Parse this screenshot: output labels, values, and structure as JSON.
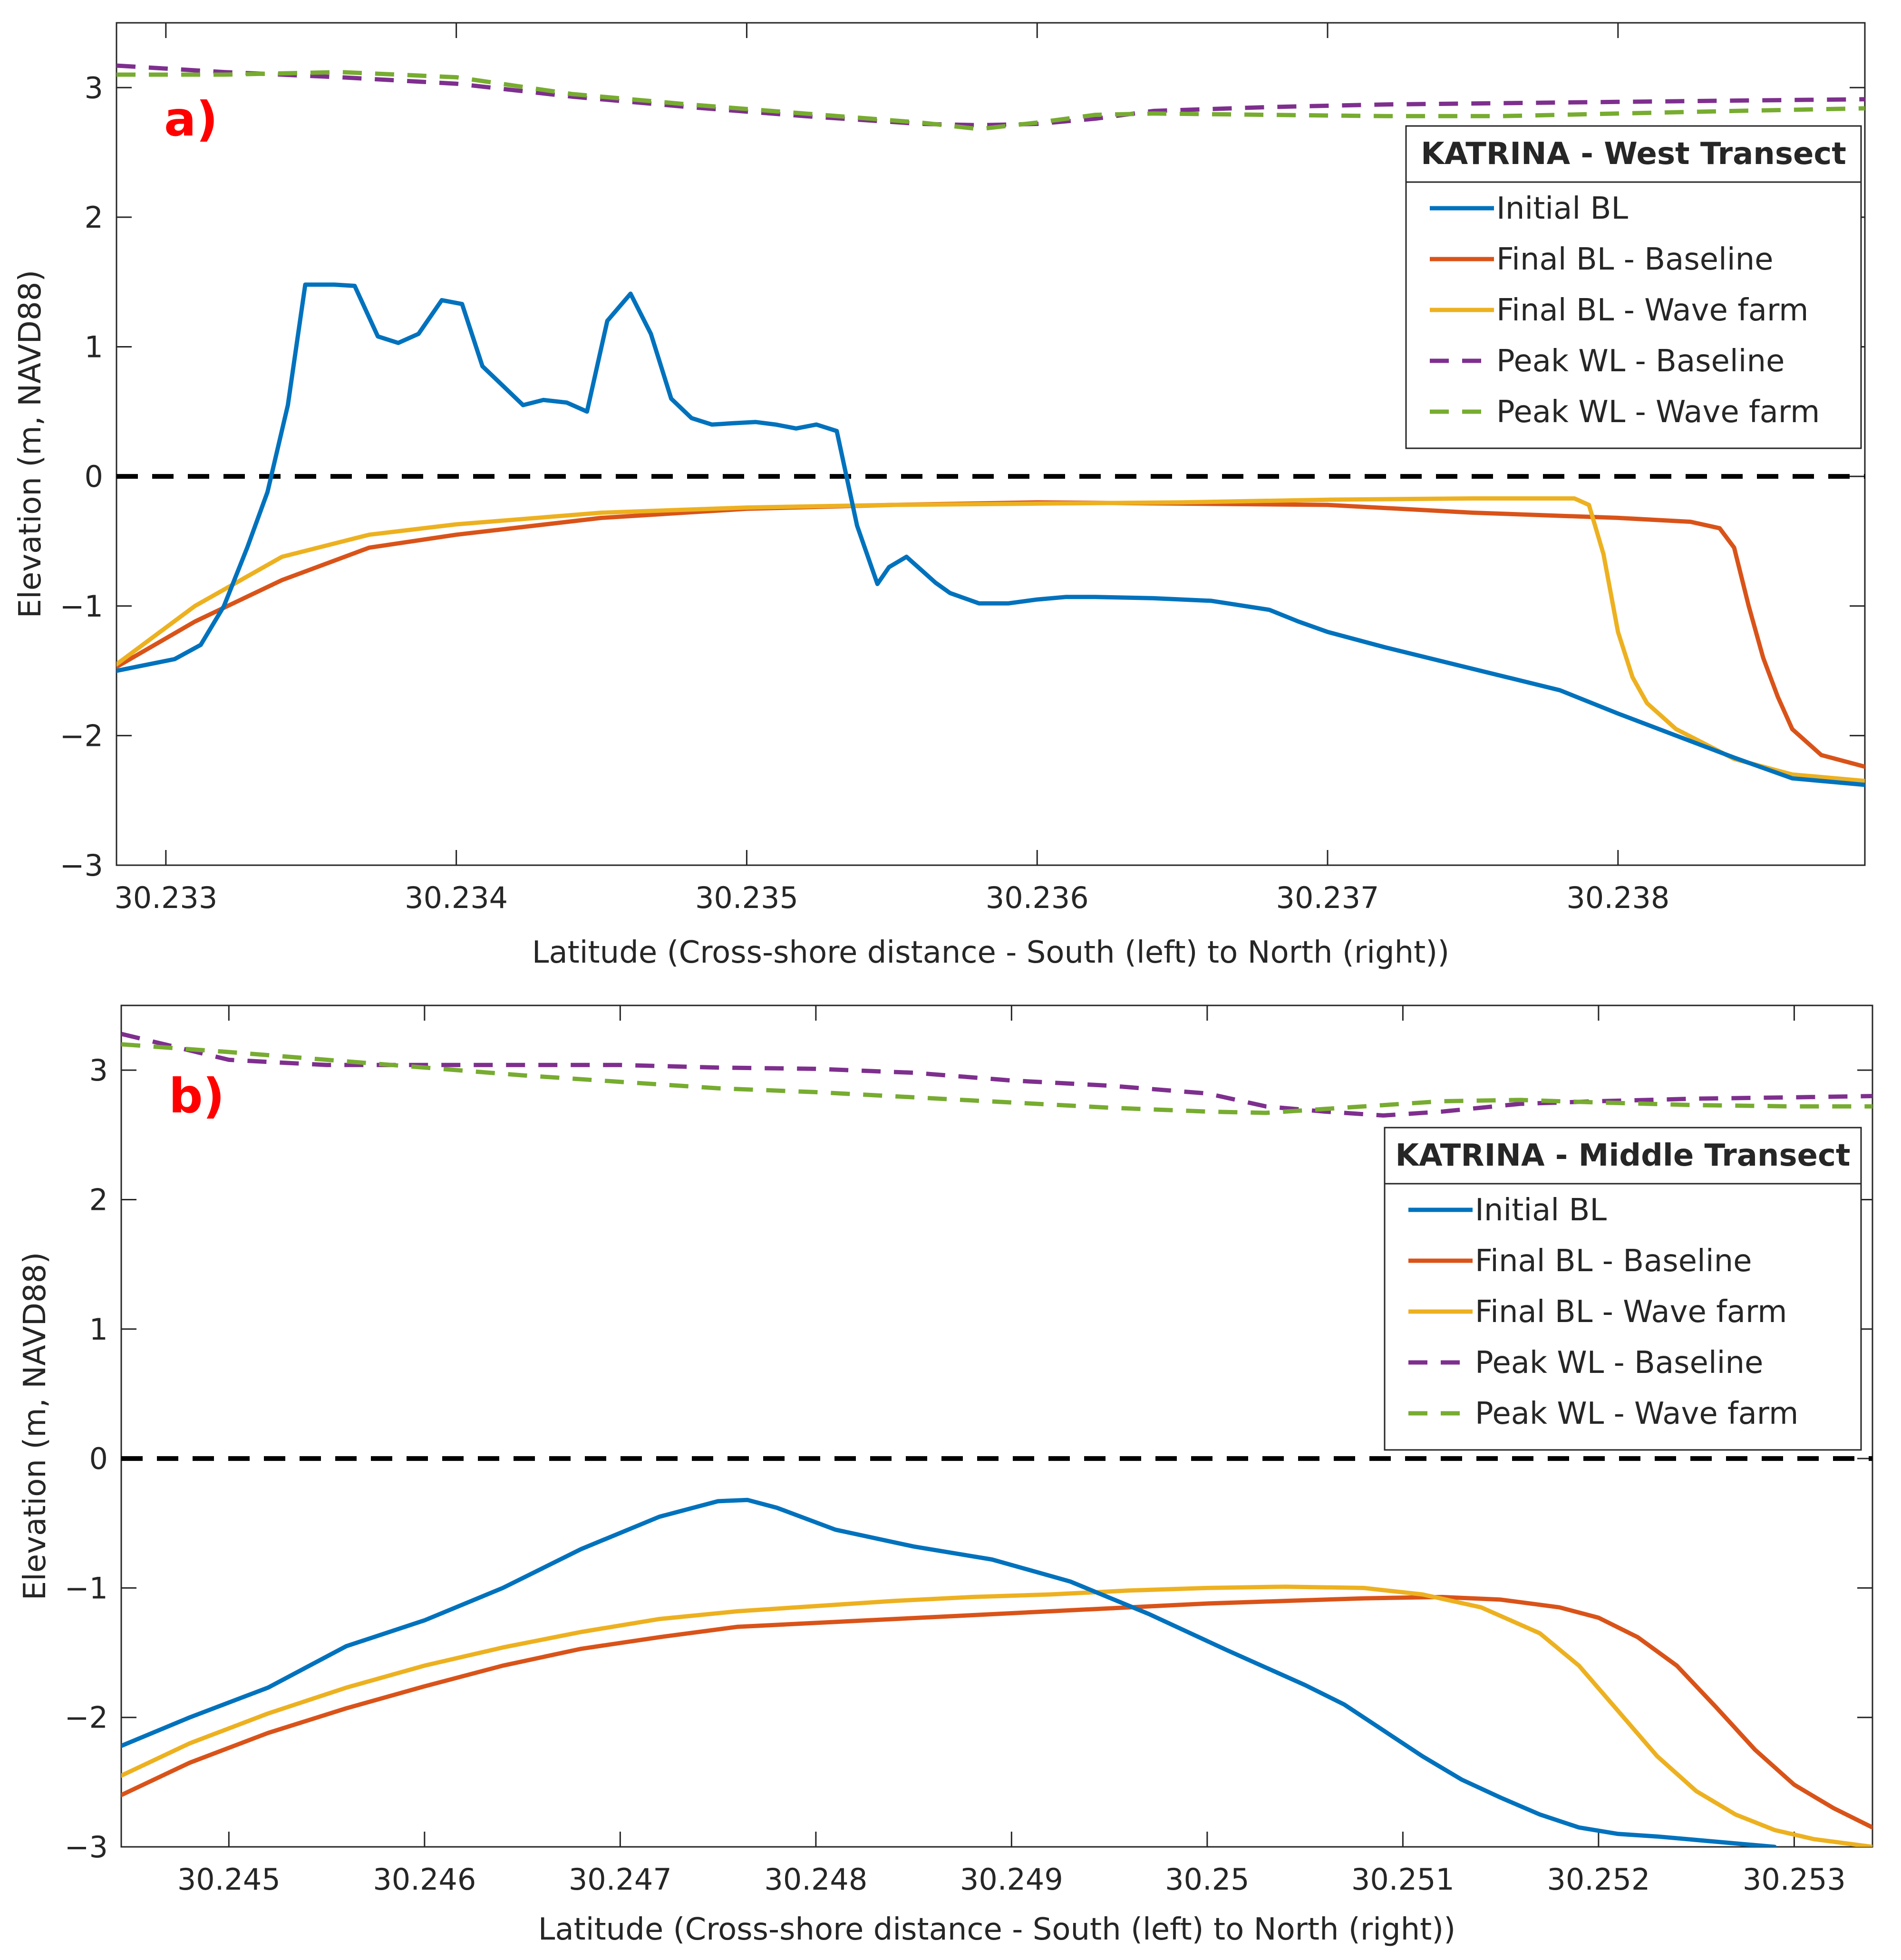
{
  "chart_data": [
    {
      "type": "line",
      "panel_label": "a)",
      "xlabel": "Latitude (Cross-shore distance - South (left) to North (right))",
      "ylabel": "Elevation (m, NAVD88)",
      "xlim": [
        30.23283,
        30.23885
      ],
      "ylim": [
        -3,
        3.5
      ],
      "xticks": [
        30.233,
        30.234,
        30.235,
        30.236,
        30.237,
        30.238
      ],
      "xtick_labels": [
        "30.233",
        "30.234",
        "30.235",
        "30.236",
        "30.237",
        "30.238"
      ],
      "yticks": [
        -3,
        -2,
        -1,
        0,
        1,
        2,
        3
      ],
      "ytick_labels": [
        "−3",
        "−2",
        "−1",
        "0",
        "1",
        "2",
        "3"
      ],
      "reference_line": {
        "y": 0,
        "style": "dashed",
        "color": "#000000"
      },
      "legend": {
        "title": "KATRINA - West Transect",
        "position": "top-right"
      },
      "series": [
        {
          "name": "Initial BL",
          "color": "#0072BD",
          "dash": "solid",
          "x": [
            30.23283,
            30.23303,
            30.23312,
            30.2332,
            30.23328,
            30.23335,
            30.23342,
            30.23348,
            30.23352,
            30.23358,
            30.23365,
            30.23373,
            30.2338,
            30.23387,
            30.23395,
            30.23402,
            30.23409,
            30.23416,
            30.23423,
            30.2343,
            30.23438,
            30.23445,
            30.23452,
            30.2346,
            30.23467,
            30.23474,
            30.23481,
            30.23488,
            30.23495,
            30.23503,
            30.2351,
            30.23517,
            30.23524,
            30.23531,
            30.23538,
            30.23545,
            30.23549,
            30.23555,
            30.2356,
            30.23565,
            30.2357,
            30.2358,
            30.2359,
            30.236,
            30.2361,
            30.2362,
            30.2364,
            30.2366,
            30.2368,
            30.2369,
            30.237,
            30.2372,
            30.2374,
            30.2376,
            30.2378,
            30.238,
            30.2382,
            30.2384,
            30.2386,
            30.23885
          ],
          "y": [
            -1.5,
            -1.41,
            -1.3,
            -1.0,
            -0.55,
            -0.12,
            0.55,
            1.48,
            1.48,
            1.48,
            1.47,
            1.08,
            1.03,
            1.1,
            1.36,
            1.33,
            0.85,
            0.7,
            0.55,
            0.59,
            0.57,
            0.5,
            1.2,
            1.41,
            1.1,
            0.6,
            0.45,
            0.4,
            0.41,
            0.42,
            0.4,
            0.37,
            0.4,
            0.35,
            -0.38,
            -0.83,
            -0.7,
            -0.62,
            -0.72,
            -0.82,
            -0.9,
            -0.98,
            -0.98,
            -0.95,
            -0.93,
            -0.93,
            -0.94,
            -0.96,
            -1.03,
            -1.12,
            -1.2,
            -1.32,
            -1.43,
            -1.54,
            -1.65,
            -1.83,
            -2.0,
            -2.17,
            -2.33,
            -2.38
          ]
        },
        {
          "name": "Final BL - Baseline",
          "color": "#D95319",
          "dash": "solid",
          "x": [
            30.23283,
            30.2331,
            30.2334,
            30.2337,
            30.234,
            30.2345,
            30.235,
            30.2355,
            30.236,
            30.2365,
            30.237,
            30.2375,
            30.238,
            30.23825,
            30.23835,
            30.2384,
            30.23845,
            30.2385,
            30.23855,
            30.2386,
            30.2387,
            30.23885
          ],
          "y": [
            -1.47,
            -1.12,
            -0.8,
            -0.55,
            -0.45,
            -0.32,
            -0.25,
            -0.22,
            -0.2,
            -0.21,
            -0.22,
            -0.28,
            -0.32,
            -0.35,
            -0.4,
            -0.55,
            -1.0,
            -1.4,
            -1.7,
            -1.95,
            -2.15,
            -2.24
          ]
        },
        {
          "name": "Final BL - Wave farm",
          "color": "#EDB120",
          "dash": "solid",
          "x": [
            30.23283,
            30.2331,
            30.2334,
            30.2337,
            30.234,
            30.2345,
            30.235,
            30.2355,
            30.236,
            30.2365,
            30.237,
            30.2375,
            30.2377,
            30.23785,
            30.2379,
            30.23795,
            30.238,
            30.23805,
            30.2381,
            30.2382,
            30.2384,
            30.2386,
            30.23885
          ],
          "y": [
            -1.45,
            -1.0,
            -0.62,
            -0.45,
            -0.37,
            -0.28,
            -0.24,
            -0.22,
            -0.21,
            -0.2,
            -0.18,
            -0.17,
            -0.17,
            -0.17,
            -0.22,
            -0.6,
            -1.2,
            -1.55,
            -1.75,
            -1.95,
            -2.18,
            -2.3,
            -2.35
          ]
        },
        {
          "name": "Peak WL - Baseline",
          "color": "#7E2F8E",
          "dash": "dashed",
          "x": [
            30.23283,
            30.2332,
            30.2336,
            30.234,
            30.2344,
            30.2348,
            30.2352,
            30.2356,
            30.2358,
            30.236,
            30.2362,
            30.2364,
            30.2368,
            30.2372,
            30.2376,
            30.238,
            30.2384,
            30.23885
          ],
          "y": [
            3.17,
            3.12,
            3.08,
            3.03,
            2.93,
            2.85,
            2.78,
            2.72,
            2.71,
            2.72,
            2.76,
            2.82,
            2.85,
            2.87,
            2.88,
            2.89,
            2.9,
            2.91
          ]
        },
        {
          "name": "Peak WL - Wave farm",
          "color": "#77AC30",
          "dash": "dashed",
          "x": [
            30.23283,
            30.2332,
            30.2336,
            30.234,
            30.2344,
            30.2348,
            30.2352,
            30.2356,
            30.2358,
            30.236,
            30.2362,
            30.2364,
            30.2368,
            30.2372,
            30.2376,
            30.238,
            30.2384,
            30.23885
          ],
          "y": [
            3.1,
            3.1,
            3.12,
            3.08,
            2.95,
            2.87,
            2.8,
            2.73,
            2.68,
            2.73,
            2.79,
            2.8,
            2.79,
            2.78,
            2.78,
            2.8,
            2.82,
            2.84
          ]
        }
      ]
    },
    {
      "type": "line",
      "panel_label": "b)",
      "xlabel": "Latitude (Cross-shore distance - South (left) to North (right))",
      "ylabel": "Elevation (m, NAVD88)",
      "xlim": [
        30.24445,
        30.2534
      ],
      "ylim": [
        -3,
        3.5
      ],
      "xticks": [
        30.245,
        30.246,
        30.247,
        30.248,
        30.249,
        30.25,
        30.251,
        30.252,
        30.253
      ],
      "xtick_labels": [
        "30.245",
        "30.246",
        "30.247",
        "30.248",
        "30.249",
        "30.25",
        "30.251",
        "30.252",
        "30.253"
      ],
      "yticks": [
        -3,
        -2,
        -1,
        0,
        1,
        2,
        3
      ],
      "ytick_labels": [
        "−3",
        "−2",
        "−1",
        "0",
        "1",
        "2",
        "3"
      ],
      "reference_line": {
        "y": 0,
        "style": "dashed",
        "color": "#000000"
      },
      "legend": {
        "title": "KATRINA - Middle Transect",
        "position": "top-right"
      },
      "series": [
        {
          "name": "Initial BL",
          "color": "#0072BD",
          "dash": "solid",
          "x": [
            30.24445,
            30.2448,
            30.2452,
            30.2456,
            30.246,
            30.2464,
            30.2468,
            30.2472,
            30.2475,
            30.24765,
            30.2478,
            30.2481,
            30.2485,
            30.2489,
            30.2493,
            30.2497,
            30.2501,
            30.2505,
            30.2507,
            30.2509,
            30.2511,
            30.2513,
            30.2515,
            30.2517,
            30.2519,
            30.2521,
            30.2523,
            30.2526,
            30.2529
          ],
          "y": [
            -2.22,
            -2.0,
            -1.77,
            -1.45,
            -1.25,
            -1.0,
            -0.7,
            -0.45,
            -0.33,
            -0.32,
            -0.38,
            -0.55,
            -0.68,
            -0.78,
            -0.95,
            -1.2,
            -1.48,
            -1.75,
            -1.9,
            -2.1,
            -2.3,
            -2.48,
            -2.62,
            -2.75,
            -2.85,
            -2.9,
            -2.92,
            -2.96,
            -3.0
          ]
        },
        {
          "name": "Final BL - Baseline",
          "color": "#D95319",
          "dash": "solid",
          "x": [
            30.24445,
            30.2448,
            30.2452,
            30.2456,
            30.246,
            30.2464,
            30.2468,
            30.2472,
            30.2476,
            30.248,
            30.2484,
            30.2488,
            30.2492,
            30.2496,
            30.25,
            30.2504,
            30.2508,
            30.2512,
            30.2515,
            30.2518,
            30.252,
            30.2522,
            30.2524,
            30.2526,
            30.2528,
            30.253,
            30.2532,
            30.2534
          ],
          "y": [
            -2.6,
            -2.35,
            -2.12,
            -1.93,
            -1.76,
            -1.6,
            -1.47,
            -1.38,
            -1.3,
            -1.27,
            -1.24,
            -1.21,
            -1.18,
            -1.15,
            -1.12,
            -1.1,
            -1.08,
            -1.07,
            -1.09,
            -1.15,
            -1.23,
            -1.38,
            -1.6,
            -1.92,
            -2.25,
            -2.52,
            -2.7,
            -2.85
          ]
        },
        {
          "name": "Final BL - Wave farm",
          "color": "#EDB120",
          "dash": "solid",
          "x": [
            30.24445,
            30.2448,
            30.2452,
            30.2456,
            30.246,
            30.2464,
            30.2468,
            30.2472,
            30.2476,
            30.248,
            30.2484,
            30.2488,
            30.2492,
            30.2496,
            30.25,
            30.2504,
            30.2508,
            30.2511,
            30.2514,
            30.2517,
            30.2519,
            30.2521,
            30.2523,
            30.2525,
            30.2527,
            30.2529,
            30.2531,
            30.2534
          ],
          "y": [
            -2.45,
            -2.2,
            -1.97,
            -1.77,
            -1.6,
            -1.46,
            -1.34,
            -1.24,
            -1.18,
            -1.14,
            -1.1,
            -1.07,
            -1.05,
            -1.02,
            -1.0,
            -0.99,
            -1.0,
            -1.05,
            -1.15,
            -1.35,
            -1.6,
            -1.95,
            -2.3,
            -2.57,
            -2.75,
            -2.87,
            -2.94,
            -3.0
          ]
        },
        {
          "name": "Peak WL - Baseline",
          "color": "#7E2F8E",
          "dash": "dashed",
          "x": [
            30.24445,
            30.245,
            30.2455,
            30.246,
            30.2465,
            30.247,
            30.2475,
            30.248,
            30.2485,
            30.249,
            30.2495,
            30.25,
            30.2503,
            30.2506,
            30.2509,
            30.2512,
            30.2516,
            30.252,
            30.2525,
            30.253,
            30.2534
          ],
          "y": [
            3.28,
            3.08,
            3.04,
            3.04,
            3.04,
            3.04,
            3.02,
            3.01,
            2.98,
            2.92,
            2.88,
            2.82,
            2.72,
            2.68,
            2.65,
            2.68,
            2.74,
            2.76,
            2.78,
            2.79,
            2.8
          ]
        },
        {
          "name": "Peak WL - Wave farm",
          "color": "#77AC30",
          "dash": "dashed",
          "x": [
            30.24445,
            30.245,
            30.2455,
            30.246,
            30.2465,
            30.247,
            30.2475,
            30.248,
            30.2485,
            30.249,
            30.2495,
            30.25,
            30.2503,
            30.2506,
            30.2509,
            30.2512,
            30.2516,
            30.252,
            30.2525,
            30.253,
            30.2534
          ],
          "y": [
            3.2,
            3.14,
            3.08,
            3.02,
            2.96,
            2.91,
            2.86,
            2.83,
            2.79,
            2.75,
            2.71,
            2.68,
            2.67,
            2.7,
            2.73,
            2.76,
            2.77,
            2.75,
            2.73,
            2.72,
            2.72
          ]
        }
      ]
    }
  ]
}
